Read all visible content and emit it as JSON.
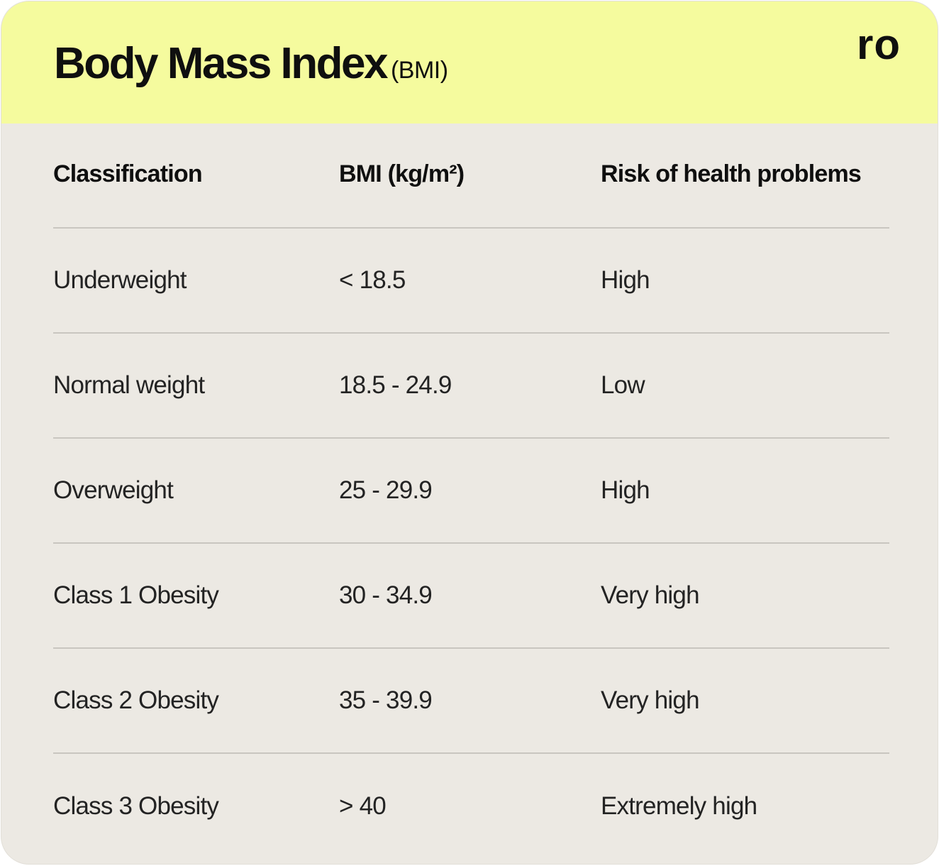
{
  "header": {
    "title": "Body Mass Index",
    "subtitle": "(BMI)",
    "logo": "ro",
    "background_color": "#f5fb9e"
  },
  "table": {
    "columns": [
      "Classification",
      "BMI (kg/m²)",
      "Risk of health problems"
    ],
    "rows": [
      {
        "classification": "Underweight",
        "bmi": "< 18.5",
        "risk": "High"
      },
      {
        "classification": "Normal weight",
        "bmi": "18.5 - 24.9",
        "risk": "Low"
      },
      {
        "classification": "Overweight",
        "bmi": "25 - 29.9",
        "risk": "High"
      },
      {
        "classification": "Class 1 Obesity",
        "bmi": "30 - 34.9",
        "risk": "Very high"
      },
      {
        "classification": "Class 2 Obesity",
        "bmi": "35 - 39.9",
        "risk": "Very high"
      },
      {
        "classification": "Class 3 Obesity",
        "bmi": "> 40",
        "risk": "Extremely high"
      }
    ]
  },
  "colors": {
    "card_background": "#ece9e3",
    "divider": "#c9c6c0"
  }
}
